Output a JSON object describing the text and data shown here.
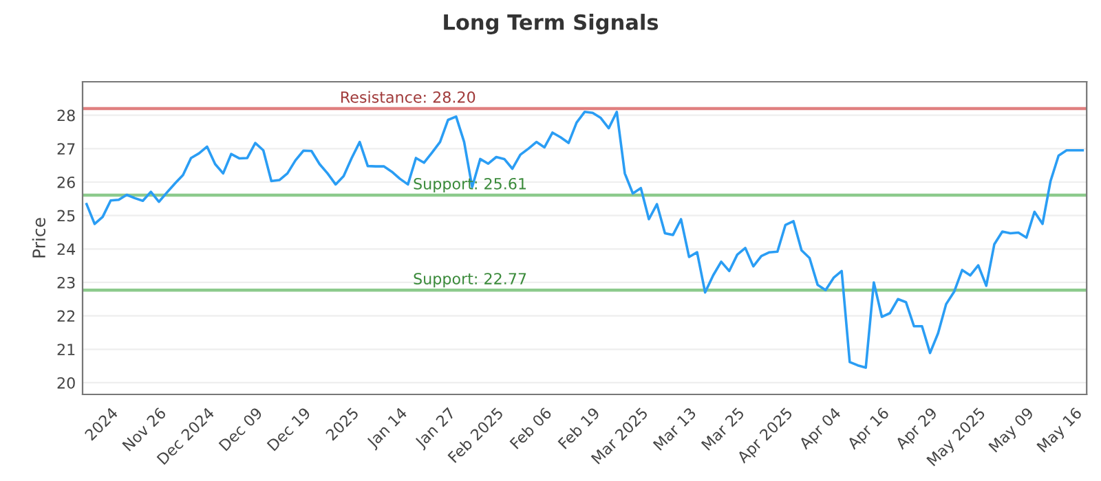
{
  "chart_data": {
    "type": "line",
    "title": "Long Term Signals",
    "ylabel": "Price",
    "categories": [
      null,
      null,
      null,
      "2024",
      null,
      null,
      null,
      null,
      null,
      "Nov 26",
      null,
      null,
      null,
      null,
      null,
      "Dec 2024",
      null,
      null,
      null,
      null,
      null,
      "Dec 09",
      null,
      null,
      null,
      null,
      null,
      "Dec 19",
      null,
      null,
      null,
      null,
      null,
      "2025",
      null,
      null,
      null,
      null,
      null,
      "Jan 14",
      null,
      null,
      null,
      null,
      null,
      "Jan 27",
      null,
      null,
      null,
      null,
      null,
      "Feb 2025",
      null,
      null,
      null,
      null,
      null,
      "Feb 06",
      null,
      null,
      null,
      null,
      null,
      "Feb 19",
      null,
      null,
      null,
      null,
      null,
      "Mar 2025",
      null,
      null,
      null,
      null,
      null,
      "Mar 13",
      null,
      null,
      null,
      null,
      null,
      "Mar 25",
      null,
      null,
      null,
      null,
      null,
      "Apr 2025",
      null,
      null,
      null,
      null,
      null,
      "Apr 04",
      null,
      null,
      null,
      null,
      null,
      "Apr 16",
      null,
      null,
      null,
      null,
      null,
      "Apr 29",
      null,
      null,
      null,
      null,
      null,
      "May 2025",
      null,
      null,
      null,
      null,
      null,
      "May 09",
      null,
      null,
      null,
      null,
      null,
      "May 16",
      null
    ],
    "series": [
      {
        "color": "#2a9df4",
        "values": [
          25.34,
          24.75,
          24.96,
          25.45,
          25.47,
          25.62,
          25.52,
          25.44,
          25.71,
          25.41,
          25.69,
          25.96,
          26.21,
          26.72,
          26.86,
          27.06,
          26.54,
          26.26,
          26.84,
          26.71,
          26.72,
          27.17,
          26.95,
          26.03,
          26.06,
          26.26,
          26.65,
          26.94,
          26.93,
          26.54,
          26.26,
          25.93,
          26.18,
          26.72,
          27.2,
          26.48,
          26.47,
          26.47,
          26.31,
          26.1,
          25.93,
          26.72,
          26.58,
          26.88,
          27.2,
          27.86,
          27.96,
          27.2,
          25.85,
          26.69,
          26.55,
          26.75,
          26.69,
          26.4,
          26.82,
          27.0,
          27.2,
          27.04,
          27.48,
          27.34,
          27.17,
          27.78,
          28.1,
          28.07,
          27.92,
          27.61,
          28.1,
          26.26,
          25.66,
          25.82,
          24.89,
          25.34,
          24.47,
          24.42,
          24.89,
          23.76,
          23.9,
          22.7,
          23.21,
          23.62,
          23.34,
          23.83,
          24.03,
          23.48,
          23.79,
          23.9,
          23.92,
          24.72,
          24.83,
          23.96,
          23.73,
          22.93,
          22.77,
          23.14,
          23.34,
          20.62,
          20.52,
          20.45,
          23.0,
          21.97,
          22.08,
          22.5,
          22.41,
          21.69,
          21.69,
          20.89,
          21.48,
          22.35,
          22.72,
          23.37,
          23.21,
          23.51,
          22.9,
          24.14,
          24.52,
          24.47,
          24.49,
          24.34,
          25.11,
          24.75,
          26.03,
          26.79,
          26.95,
          26.95,
          26.95
        ]
      }
    ],
    "ylim": [
      19.65,
      29.0
    ],
    "yticks": [
      20,
      21,
      22,
      23,
      24,
      25,
      26,
      27,
      28
    ],
    "grid": "y",
    "marker": "none",
    "line_style": "solid",
    "ref_lines": [
      {
        "axis": "y",
        "value": 28.2,
        "label": "Resistance: 28.20",
        "color": "#e08080"
      },
      {
        "axis": "y",
        "value": 25.61,
        "label": "Support: 25.61",
        "color": "#8cca8c"
      },
      {
        "axis": "y",
        "value": 22.77,
        "label": "Support: 22.77",
        "color": "#8cca8c"
      }
    ]
  }
}
